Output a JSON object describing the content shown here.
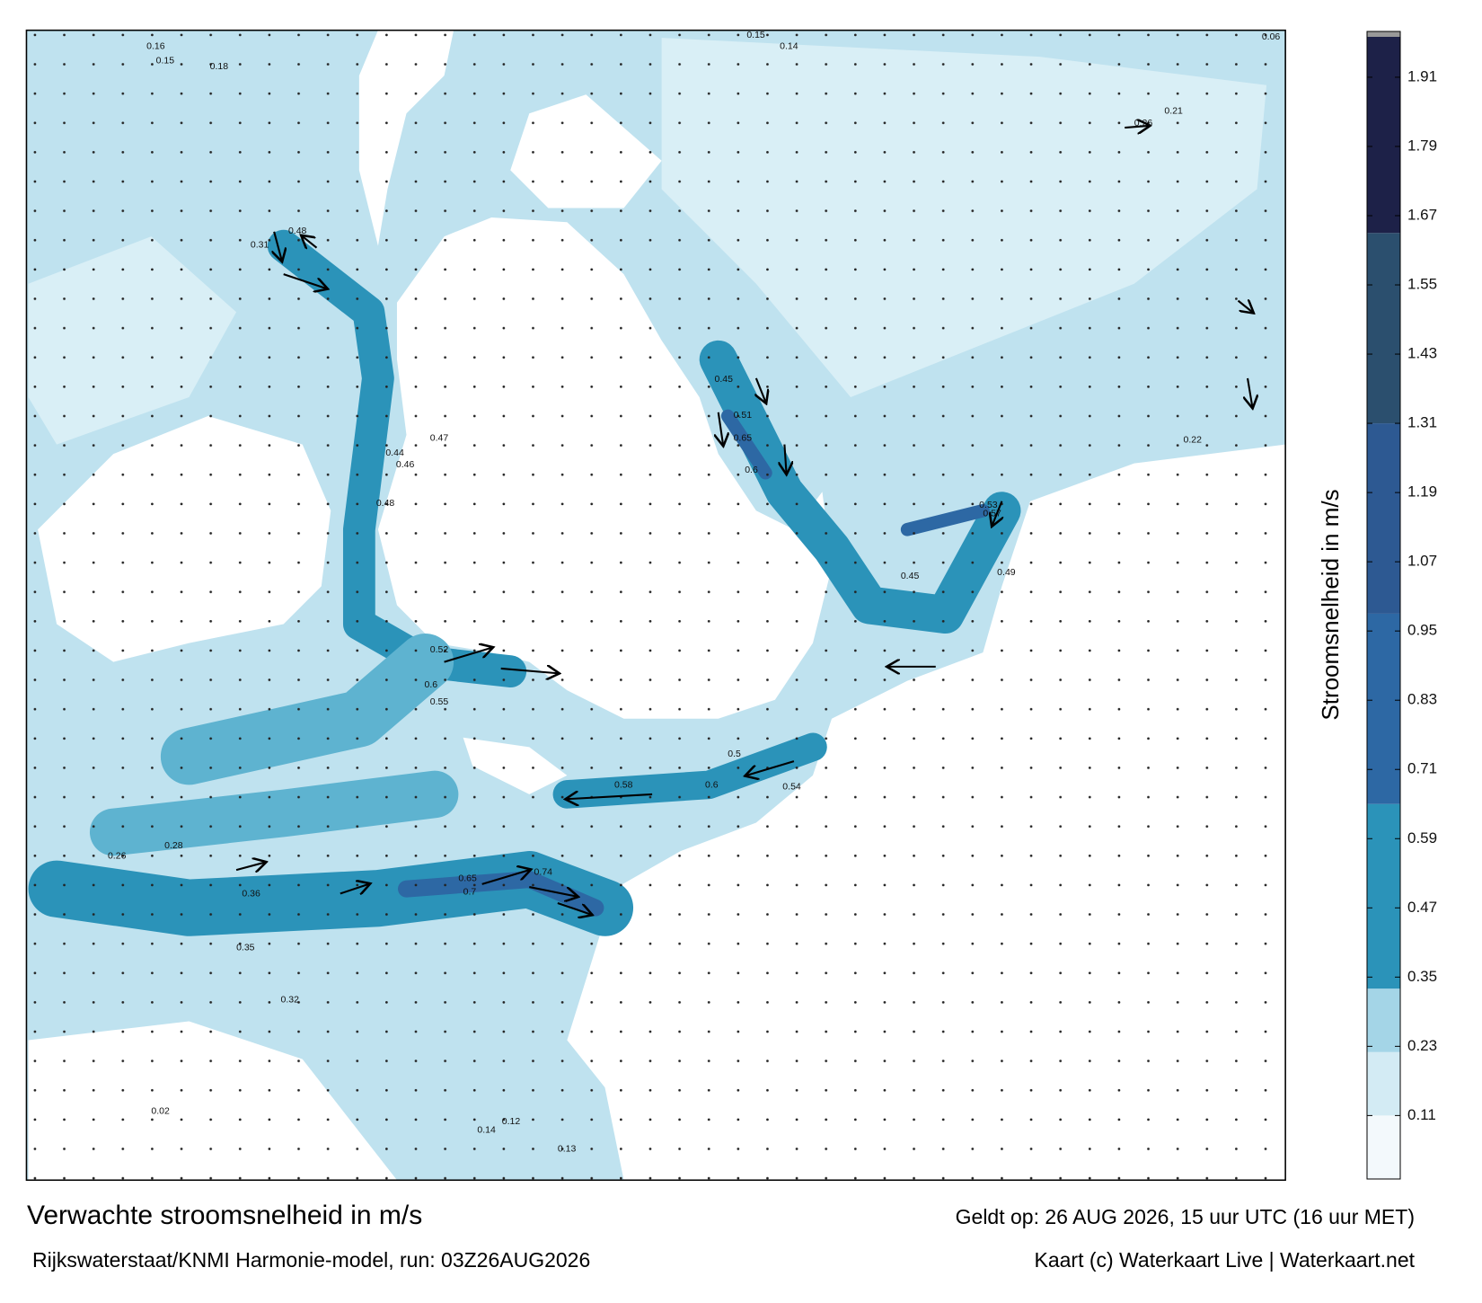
{
  "title": "Verwachte stroomsnelheid in m/s",
  "subtitle": "Rijkswaterstaat/KNMI Harmonie-model, run: 03Z26AUG2026",
  "valid_time": "Geldt op: 26 AUG 2026, 15 uur UTC (16 uur MET)",
  "credit": "Kaart (c) Waterkaart Live | Waterkaart.net",
  "colorbar": {
    "label": "Stroomsnelheid in m/s",
    "lim": [
      0,
      1.98
    ],
    "ticks": [
      0.11,
      0.23,
      0.35,
      0.47,
      0.59,
      0.71,
      0.83,
      0.95,
      1.07,
      1.19,
      1.31,
      1.43,
      1.55,
      1.67,
      1.79,
      1.91
    ],
    "bands": [
      {
        "from": 0,
        "to": 0.11,
        "color": "#f3f9fc"
      },
      {
        "from": 0.11,
        "to": 0.22,
        "color": "#d3ebf4"
      },
      {
        "from": 0.22,
        "to": 0.33,
        "color": "#a4d5e7"
      },
      {
        "from": 0.33,
        "to": 0.65,
        "color": "#2b93b9"
      },
      {
        "from": 0.65,
        "to": 0.98,
        "color": "#2d68a4"
      },
      {
        "from": 0.98,
        "to": 1.31,
        "color": "#2d5992"
      },
      {
        "from": 1.31,
        "to": 1.64,
        "color": "#2b4f6e"
      },
      {
        "from": 1.64,
        "to": 1.98,
        "color": "#1d2148"
      }
    ]
  },
  "speed_labels": [
    0.65,
    0.6,
    0.45,
    0.51,
    0.55,
    0.52,
    0.6,
    0.74,
    0.7,
    0.65,
    0.58,
    0.6,
    0.54,
    0.5,
    0.48,
    0.46,
    0.47,
    0.44,
    0.31,
    0.48,
    0.57,
    0.53,
    0.49,
    0.45,
    0.36,
    0.35,
    0.32,
    0.28,
    0.26,
    0.22,
    0.21,
    0.26,
    0.13,
    0.12,
    0.14,
    0.02,
    0.16,
    0.15,
    0.18,
    0.06,
    0.14,
    0.15
  ]
}
